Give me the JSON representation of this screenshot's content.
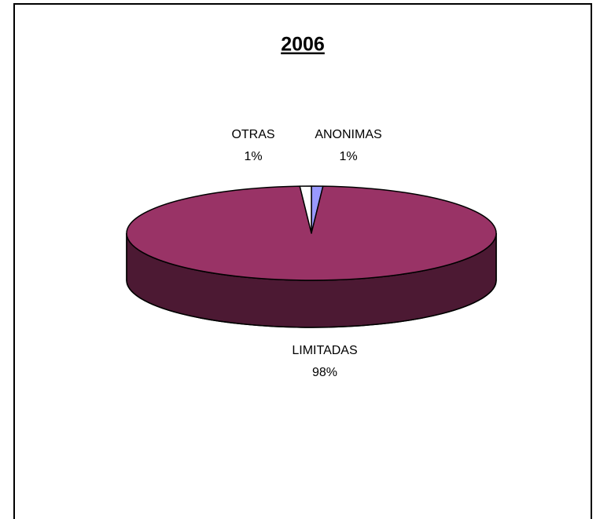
{
  "chart_data": {
    "type": "pie",
    "title": "2006",
    "categories": [
      "ANONIMAS",
      "LIMITADAS",
      "OTRAS"
    ],
    "values": [
      1,
      98,
      1
    ],
    "value_labels": [
      "1%",
      "98%",
      "1%"
    ],
    "colors": [
      "#9999ff",
      "#993366",
      "#ffffff"
    ],
    "start_angle": 0,
    "direction": "clockwise",
    "three_d": true
  }
}
